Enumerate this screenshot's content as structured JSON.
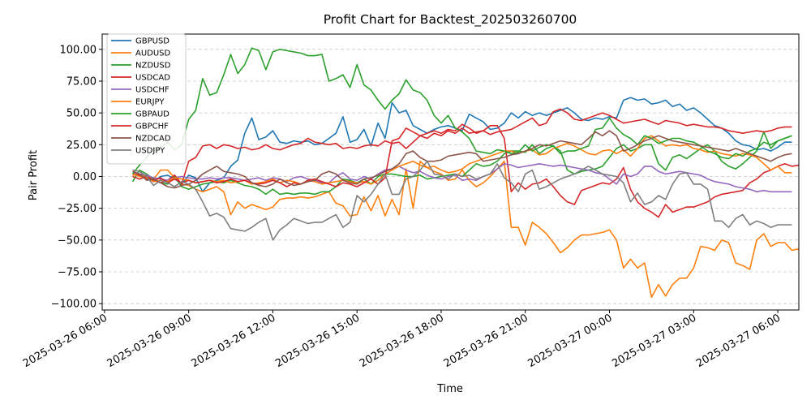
{
  "chart_data": {
    "type": "line",
    "title": "Profit Chart for Backtest_202503260700",
    "xlabel": "Time",
    "ylabel": "Pair Profit",
    "x_start": "2025-03-26 07:00",
    "x_step_minutes": 15,
    "xlim": [
      "2025-03-26 05:55",
      "2025-03-27 06:45"
    ],
    "ylim": [
      -105,
      112
    ],
    "x_ticks": [
      "2025-03-26 06:00",
      "2025-03-26 09:00",
      "2025-03-26 12:00",
      "2025-03-26 15:00",
      "2025-03-26 18:00",
      "2025-03-26 21:00",
      "2025-03-27 00:00",
      "2025-03-27 03:00",
      "2025-03-27 06:00"
    ],
    "y_ticks": [
      "100.00",
      "75.00",
      "50.00",
      "25.00",
      "0.00",
      "−25.00",
      "−50.00",
      "−75.00",
      "−100.00"
    ],
    "grid": "y-dashed",
    "legend_position": "top-left",
    "series": [
      {
        "name": "GBPUSD",
        "color": "#1f77b4",
        "values": [
          1,
          2,
          -1,
          -4,
          0,
          1,
          -2,
          -6,
          1,
          -1,
          -12,
          -5,
          -3,
          -1,
          8,
          13,
          34,
          46,
          29,
          31,
          36,
          27,
          26,
          28,
          27,
          28,
          25,
          26,
          30,
          34,
          47,
          27,
          29,
          37,
          24,
          42,
          30,
          58,
          50,
          52,
          40,
          37,
          34,
          37,
          39,
          40,
          38,
          36,
          49,
          46,
          43,
          37,
          38,
          42,
          50,
          46,
          51,
          48,
          50,
          48,
          50,
          52,
          54,
          50,
          45,
          44,
          46,
          45,
          47,
          46,
          60,
          62,
          60,
          61,
          57,
          58,
          60,
          55,
          57,
          52,
          54,
          50,
          45,
          40,
          38,
          34,
          28,
          25,
          24,
          21,
          22,
          20,
          23,
          27,
          27
        ]
      },
      {
        "name": "AUDUSD",
        "color": "#ff7f0e",
        "values": [
          1,
          2,
          0,
          -2,
          5,
          5,
          -1,
          -6,
          -7,
          -10,
          -12,
          -10,
          -8,
          -12,
          -30,
          -20,
          -25,
          -22,
          -24,
          -26,
          -24,
          -18,
          -17,
          -17,
          -16,
          -17,
          -16,
          -14,
          -12,
          -21,
          -23,
          -31,
          -30,
          -16,
          -27,
          -15,
          -31,
          -18,
          -30,
          6,
          -25,
          12,
          7,
          4,
          2,
          -3,
          -2,
          5,
          -3,
          -8,
          -5,
          0,
          6,
          12,
          -40,
          -40,
          -54,
          -36,
          -40,
          -45,
          -52,
          -60,
          -56,
          -50,
          -46,
          -46,
          -45,
          -44,
          -42,
          -50,
          -72,
          -65,
          -72,
          -68,
          -95,
          -85,
          -94,
          -85,
          -80,
          -80,
          -72,
          -55,
          -56,
          -58,
          -50,
          -52,
          -68,
          -70,
          -73,
          -50,
          -45,
          -55,
          -52,
          -52,
          -58,
          -57
        ]
      },
      {
        "name": "NZDUSD",
        "color": "#2ca02c",
        "values": [
          -4,
          5,
          2,
          -2,
          -5,
          -6,
          0,
          -8,
          -10,
          -8,
          -6,
          -5,
          -4,
          -5,
          -3,
          -5,
          -7,
          -8,
          -10,
          -14,
          -10,
          -14,
          -13,
          -14,
          -13,
          -13,
          -14,
          -12,
          -12,
          -8,
          -2,
          -3,
          -5,
          -2,
          -6,
          0,
          2,
          2,
          1,
          0,
          0,
          1,
          -2,
          -1,
          0,
          1,
          2,
          0,
          5,
          10,
          8,
          9,
          12,
          18,
          20,
          20,
          19,
          25,
          18,
          22,
          24,
          20,
          5,
          2,
          4,
          5,
          6,
          8,
          15,
          22,
          25,
          20,
          22,
          25,
          25,
          10,
          5,
          15,
          17,
          14,
          18,
          22,
          25,
          20,
          12,
          8,
          6,
          10,
          15,
          20,
          35,
          22,
          28,
          30,
          32
        ]
      },
      {
        "name": "USDCAD",
        "color": "#d62728",
        "values": [
          2,
          1,
          -2,
          -3,
          -5,
          -3,
          1,
          -6,
          12,
          15,
          24,
          25,
          22,
          25,
          24,
          22,
          23,
          21,
          22,
          25,
          22,
          21,
          23,
          25,
          26,
          30,
          27,
          26,
          25,
          26,
          22,
          23,
          22,
          24,
          25,
          24,
          28,
          26,
          27,
          22,
          27,
          32,
          34,
          36,
          34,
          37,
          36,
          41,
          38,
          34,
          36,
          40,
          40,
          30,
          -12,
          -5,
          -10,
          -6,
          -5,
          -2,
          -8,
          -15,
          -20,
          -22,
          -11,
          -9,
          -7,
          -5,
          -6,
          -2,
          7,
          -10,
          -20,
          -25,
          -28,
          -32,
          -22,
          -28,
          -26,
          -24,
          -24,
          -22,
          -20,
          -16,
          -14,
          -13,
          -12,
          -11,
          -5,
          -2,
          3,
          5,
          8,
          10,
          8,
          9
        ]
      },
      {
        "name": "USDCHF",
        "color": "#9467bd",
        "values": [
          3,
          2,
          1,
          -1,
          -2,
          -3,
          -1,
          0,
          -1,
          -2,
          -2,
          -1,
          -2,
          -1,
          -1,
          -2,
          -3,
          -2,
          -1,
          -3,
          -1,
          -2,
          -4,
          -1,
          0,
          -2,
          -3,
          -5,
          -5,
          0,
          3,
          -2,
          -3,
          0,
          -2,
          2,
          5,
          6,
          8,
          5,
          3,
          4,
          1,
          -1,
          -2,
          0,
          1,
          -3,
          -2,
          -3,
          0,
          2,
          6,
          10,
          9,
          7,
          8,
          9,
          10,
          9,
          8,
          9,
          8,
          7,
          6,
          5,
          3,
          2,
          -2,
          -6,
          2,
          0,
          2,
          8,
          8,
          4,
          2,
          3,
          4,
          3,
          2,
          1,
          -2,
          -4,
          -5,
          -6,
          -8,
          -9,
          -10,
          -12,
          -11,
          -12,
          -12,
          -12,
          -12
        ]
      },
      {
        "name": "EURJPY",
        "color": "#ff7f0e",
        "values": [
          2,
          0,
          -1,
          -4,
          -3,
          -4,
          -1,
          -2,
          -3,
          -5,
          -4,
          -3,
          -4,
          -3,
          -5,
          -4,
          -3,
          -6,
          -5,
          -4,
          -2,
          -5,
          -3,
          -4,
          -6,
          -3,
          -4,
          -6,
          -5,
          -4,
          -3,
          -4,
          -5,
          -4,
          -6,
          -3,
          2,
          5,
          8,
          10,
          12,
          9,
          7,
          8,
          5,
          3,
          4,
          6,
          10,
          12,
          14,
          16,
          18,
          20,
          20,
          18,
          20,
          21,
          17,
          18,
          22,
          24,
          26,
          24,
          21,
          18,
          17,
          20,
          21,
          18,
          21,
          16,
          22,
          30,
          32,
          28,
          24,
          25,
          24,
          25,
          22,
          21,
          19,
          20,
          18,
          17,
          16,
          18,
          17,
          15,
          10,
          5,
          8,
          3,
          3
        ]
      },
      {
        "name": "GBPAUD",
        "color": "#2ca02c",
        "values": [
          2,
          9,
          15,
          22,
          23,
          27,
          21,
          25,
          45,
          52,
          77,
          64,
          66,
          80,
          96,
          81,
          88,
          101,
          99,
          84,
          98,
          100,
          99,
          98,
          97,
          95,
          95,
          96,
          75,
          77,
          80,
          70,
          88,
          72,
          68,
          60,
          53,
          60,
          65,
          76,
          68,
          66,
          60,
          48,
          42,
          48,
          38,
          35,
          30,
          20,
          19,
          18,
          21,
          20,
          18,
          19,
          25,
          20,
          23,
          25,
          24,
          18,
          20,
          20,
          22,
          24,
          37,
          38,
          46,
          38,
          33,
          30,
          25,
          32,
          30,
          26,
          28,
          30,
          30,
          28,
          27,
          24,
          20,
          18,
          15,
          14,
          18,
          16,
          20,
          22,
          27,
          25,
          28,
          30,
          32
        ]
      },
      {
        "name": "GBPCHF",
        "color": "#d62728",
        "values": [
          0,
          -2,
          0,
          -3,
          -1,
          -5,
          -2,
          -5,
          -3,
          -5,
          -4,
          -3,
          -5,
          -4,
          -2,
          -4,
          -3,
          -5,
          -6,
          -5,
          -3,
          -5,
          -8,
          -5,
          -6,
          -3,
          -2,
          -4,
          -6,
          -8,
          -5,
          -6,
          -8,
          -5,
          -2,
          -6,
          -1,
          28,
          30,
          38,
          35,
          32,
          30,
          34,
          32,
          36,
          34,
          38,
          34,
          35,
          36,
          33,
          35,
          36,
          37,
          40,
          43,
          46,
          40,
          42,
          51,
          53,
          50,
          45,
          44,
          46,
          48,
          50,
          48,
          45,
          42,
          43,
          44,
          45,
          43,
          41,
          44,
          43,
          42,
          40,
          41,
          40,
          39,
          39,
          38,
          36,
          35,
          34,
          35,
          36,
          35,
          36,
          38,
          39,
          39
        ]
      },
      {
        "name": "NZDCAD",
        "color": "#8c564b",
        "values": [
          4,
          2,
          -3,
          -2,
          -5,
          -8,
          -9,
          -7,
          -6,
          -3,
          2,
          5,
          8,
          4,
          3,
          2,
          0,
          -5,
          -7,
          -8,
          -6,
          -2,
          -5,
          -7,
          -6,
          -4,
          -3,
          2,
          4,
          2,
          -3,
          -5,
          -6,
          -2,
          -1,
          1,
          4,
          6,
          10,
          18,
          20,
          15,
          12,
          12,
          13,
          16,
          17,
          18,
          19,
          18,
          12,
          13,
          14,
          15,
          17,
          18,
          20,
          22,
          25,
          24,
          26,
          28,
          27,
          26,
          25,
          30,
          35,
          32,
          36,
          32,
          20,
          22,
          25,
          28,
          30,
          32,
          30,
          28,
          27,
          26,
          25,
          24,
          23,
          22,
          21,
          20,
          22,
          20,
          18,
          16,
          14,
          12,
          15,
          17,
          18
        ]
      },
      {
        "name": "USDJPY",
        "color": "#7f7f7f",
        "values": [
          5,
          4,
          0,
          -7,
          -3,
          -5,
          -8,
          -4,
          -6,
          -10,
          -20,
          -31,
          -29,
          -32,
          -41,
          -42,
          -43,
          -40,
          -36,
          -33,
          -50,
          -42,
          -38,
          -33,
          -35,
          -37,
          -36,
          -36,
          -33,
          -30,
          -40,
          -36,
          -15,
          -20,
          -14,
          -6,
          2,
          -14,
          -14,
          -2,
          0,
          5,
          12,
          2,
          1,
          -2,
          2,
          0,
          1,
          -2,
          0,
          2,
          10,
          -1,
          -5,
          -12,
          2,
          5,
          -10,
          -8,
          -5,
          -2,
          0,
          2,
          5,
          8,
          5,
          2,
          1,
          0,
          -5,
          -20,
          -13,
          -22,
          -20,
          -15,
          -18,
          -6,
          2,
          3,
          -6,
          -6,
          -10,
          -35,
          -35,
          -40,
          -33,
          -30,
          -38,
          -35,
          -37,
          -40,
          -38,
          -38,
          -38
        ]
      }
    ]
  }
}
